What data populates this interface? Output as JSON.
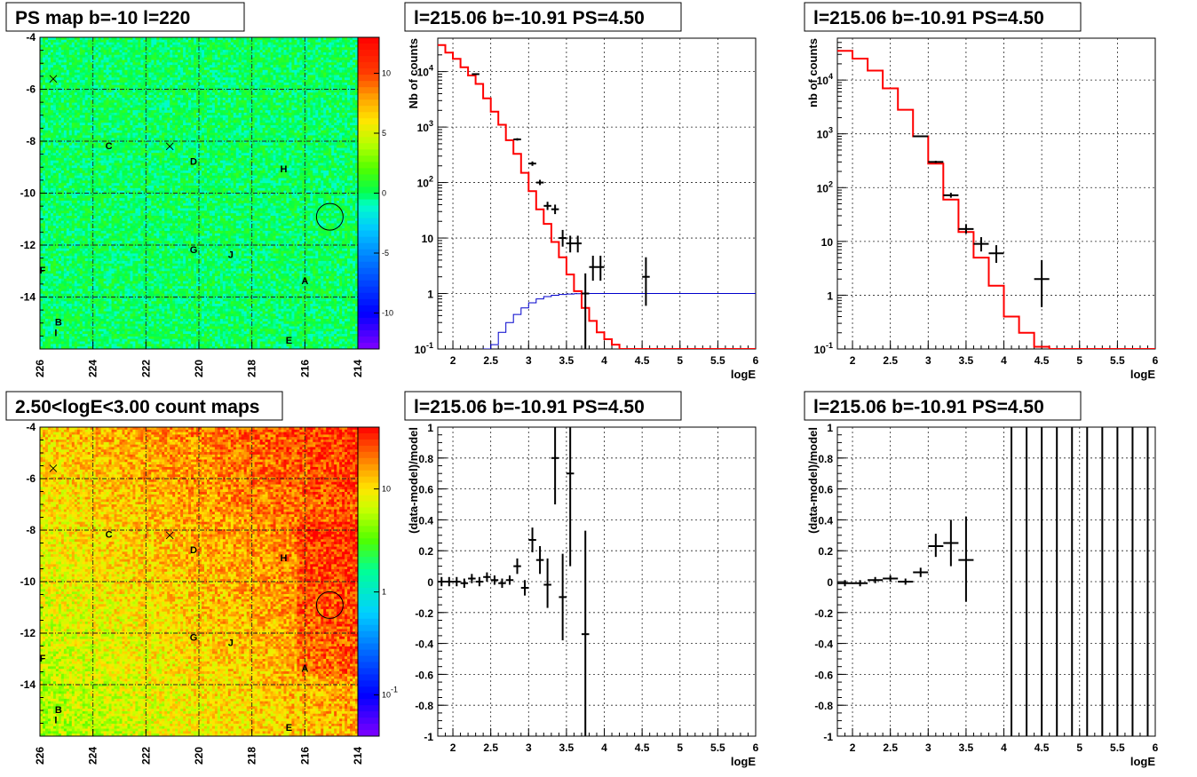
{
  "chart_data": [
    {
      "id": "ps-map",
      "type": "heatmap",
      "title": "PS map b=-10 l=220",
      "x_ticks": [
        "226",
        "224",
        "222",
        "220",
        "218",
        "216",
        "214"
      ],
      "y_ticks": [
        "-4",
        "-6",
        "-8",
        "-10",
        "-12",
        "-14"
      ],
      "xlim": [
        226,
        214
      ],
      "ylim": [
        -16,
        -4
      ],
      "colorbar_ticks": [
        "10",
        "5",
        "0",
        "-5",
        "-10"
      ],
      "colorbar_range": [
        -13,
        13
      ],
      "scale": "linear",
      "fill_level": 0,
      "source_labels": [
        {
          "text": "C",
          "l": 223.4,
          "b": -8.3
        },
        {
          "text": "D",
          "l": 220.2,
          "b": -8.9
        },
        {
          "text": "H",
          "l": 216.8,
          "b": -9.2
        },
        {
          "text": "G",
          "l": 220.2,
          "b": -12.3
        },
        {
          "text": "J",
          "l": 218.8,
          "b": -12.5
        },
        {
          "text": "F",
          "l": 225.9,
          "b": -13.1
        },
        {
          "text": "A",
          "l": 216.0,
          "b": -13.5
        },
        {
          "text": "B",
          "l": 225.3,
          "b": -15.1
        },
        {
          "text": "I",
          "l": 225.4,
          "b": -15.5
        },
        {
          "text": "E",
          "l": 216.6,
          "b": -15.8
        }
      ],
      "cross_markers": [
        {
          "l": 225.5,
          "b": -5.6
        },
        {
          "l": 221.1,
          "b": -8.2
        }
      ],
      "circle_marker": {
        "l": 215.06,
        "b": -10.91
      }
    },
    {
      "id": "count-map",
      "type": "heatmap",
      "title": "2.50<logE<3.00 count maps",
      "x_ticks": [
        "226",
        "224",
        "222",
        "220",
        "218",
        "216",
        "214"
      ],
      "y_ticks": [
        "-4",
        "-6",
        "-8",
        "-10",
        "-12",
        "-14"
      ],
      "xlim": [
        226,
        214
      ],
      "ylim": [
        -16,
        -4
      ],
      "colorbar_ticks": [
        "10",
        "1",
        "10-1"
      ],
      "colorbar_range": [
        -1.4,
        1.6
      ],
      "scale": "log",
      "source_labels": [
        {
          "text": "C",
          "l": 223.4,
          "b": -8.3
        },
        {
          "text": "D",
          "l": 220.2,
          "b": -8.9
        },
        {
          "text": "H",
          "l": 216.8,
          "b": -9.2
        },
        {
          "text": "G",
          "l": 220.2,
          "b": -12.3
        },
        {
          "text": "J",
          "l": 218.8,
          "b": -12.5
        },
        {
          "text": "F",
          "l": 225.9,
          "b": -13.1
        },
        {
          "text": "A",
          "l": 216.0,
          "b": -13.5
        },
        {
          "text": "B",
          "l": 225.3,
          "b": -15.1
        },
        {
          "text": "I",
          "l": 225.4,
          "b": -15.5
        },
        {
          "text": "E",
          "l": 216.6,
          "b": -15.8
        }
      ],
      "cross_markers": [
        {
          "l": 225.5,
          "b": -5.6
        },
        {
          "l": 221.1,
          "b": -8.2
        }
      ],
      "circle_marker": {
        "l": 215.06,
        "b": -10.91
      }
    },
    {
      "id": "spec-fine",
      "type": "line",
      "title": "l=215.06 b=-10.91 PS=4.50",
      "xlabel": "logE",
      "ylabel": "Nb of counts",
      "xlim": [
        1.8,
        6
      ],
      "ylim": [
        0.1,
        40000
      ],
      "yscale": "log",
      "x_ticks": [
        "2",
        "2.5",
        "3",
        "3.5",
        "4",
        "4.5",
        "5",
        "5.5",
        "6"
      ],
      "y_ticks": [
        "10-1",
        "1",
        "10",
        "102",
        "103",
        "104"
      ],
      "model_hist": {
        "color": "#ff0000",
        "edges": [
          1.8,
          1.9,
          2.0,
          2.1,
          2.2,
          2.3,
          2.4,
          2.5,
          2.6,
          2.7,
          2.8,
          2.9,
          3.0,
          3.1,
          3.2,
          3.3,
          3.4,
          3.5,
          3.6,
          3.7,
          3.8,
          3.9,
          4.0,
          4.1,
          4.2,
          4.3,
          4.4,
          4.5,
          6.0
        ],
        "values": [
          30000,
          22000,
          17000,
          12000,
          8500,
          6000,
          3300,
          1900,
          1100,
          580,
          330,
          150,
          70,
          33,
          18,
          8.5,
          4.5,
          2.2,
          1.1,
          0.55,
          0.32,
          0.2,
          0.15,
          0.12,
          0.1,
          0.1,
          0.1,
          0.1
        ]
      },
      "ps_hist": {
        "color": "#0000cc",
        "edges": [
          1.8,
          2.4,
          2.5,
          2.6,
          2.7,
          2.8,
          2.9,
          3.0,
          3.1,
          3.2,
          3.3,
          3.4,
          3.5,
          3.6,
          3.7,
          3.8,
          3.9,
          6.0
        ],
        "values": [
          0.05,
          0.1,
          0.12,
          0.2,
          0.3,
          0.42,
          0.55,
          0.68,
          0.8,
          0.88,
          0.93,
          0.96,
          0.98,
          0.99,
          1.0,
          1.0,
          1.0
        ]
      },
      "data_points": [
        {
          "x": 2.3,
          "y": 9000,
          "ylo": 8700,
          "yhi": 9300,
          "xerr": 0.05
        },
        {
          "x": 2.85,
          "y": 600,
          "ylo": 570,
          "yhi": 630,
          "xerr": 0.05
        },
        {
          "x": 3.05,
          "y": 220,
          "ylo": 200,
          "yhi": 240,
          "xerr": 0.05
        },
        {
          "x": 3.15,
          "y": 100,
          "ylo": 90,
          "yhi": 112,
          "xerr": 0.05
        },
        {
          "x": 3.25,
          "y": 38,
          "ylo": 32,
          "yhi": 45,
          "xerr": 0.05
        },
        {
          "x": 3.35,
          "y": 33,
          "ylo": 27,
          "yhi": 40,
          "xerr": 0.05
        },
        {
          "x": 3.45,
          "y": 10,
          "ylo": 7,
          "yhi": 14,
          "xerr": 0.05
        },
        {
          "x": 3.55,
          "y": 8,
          "ylo": 5.5,
          "yhi": 11,
          "xerr": 0.05
        },
        {
          "x": 3.65,
          "y": 8,
          "ylo": 5.5,
          "yhi": 11,
          "xerr": 0.05
        },
        {
          "x": 3.75,
          "y": 1,
          "ylo": 0.05,
          "yhi": 2.3,
          "xerr": 0.05
        },
        {
          "x": 3.85,
          "y": 3,
          "ylo": 1.7,
          "yhi": 4.8,
          "xerr": 0.05
        },
        {
          "x": 3.95,
          "y": 3,
          "ylo": 1.7,
          "yhi": 4.8,
          "xerr": 0.05
        },
        {
          "x": 4.55,
          "y": 2,
          "ylo": 0.6,
          "yhi": 4.5,
          "xerr": 0.05
        }
      ]
    },
    {
      "id": "spec-coarse",
      "type": "line",
      "title": "l=215.06 b=-10.91 PS=4.50",
      "xlabel": "logE",
      "ylabel": "nb of counts",
      "xlim": [
        1.8,
        6
      ],
      "ylim": [
        0.1,
        60000
      ],
      "yscale": "log",
      "x_ticks": [
        "2",
        "2.5",
        "3",
        "3.5",
        "4",
        "4.5",
        "5",
        "5.5",
        "6"
      ],
      "y_ticks": [
        "10-1",
        "1",
        "10",
        "102",
        "103",
        "104"
      ],
      "model_hist": {
        "color": "#ff0000",
        "edges": [
          1.8,
          2.0,
          2.2,
          2.4,
          2.6,
          2.8,
          3.0,
          3.2,
          3.4,
          3.6,
          3.8,
          4.0,
          4.2,
          4.4,
          4.6,
          6.0
        ],
        "values": [
          35000,
          25000,
          15000,
          7000,
          2800,
          900,
          280,
          60,
          15,
          5,
          1.5,
          0.4,
          0.2,
          0.11,
          0.1
        ]
      },
      "data_points": [
        {
          "x": 2.9,
          "y": 900,
          "ylo": 870,
          "yhi": 930,
          "xerr": 0.1
        },
        {
          "x": 3.1,
          "y": 300,
          "ylo": 285,
          "yhi": 315,
          "xerr": 0.1
        },
        {
          "x": 3.3,
          "y": 72,
          "ylo": 65,
          "yhi": 80,
          "xerr": 0.1
        },
        {
          "x": 3.5,
          "y": 17,
          "ylo": 14,
          "yhi": 21,
          "xerr": 0.1
        },
        {
          "x": 3.7,
          "y": 9,
          "ylo": 6.5,
          "yhi": 12,
          "xerr": 0.1
        },
        {
          "x": 3.9,
          "y": 6,
          "ylo": 4,
          "yhi": 8.5,
          "xerr": 0.1
        },
        {
          "x": 4.5,
          "y": 2,
          "ylo": 0.6,
          "yhi": 4.5,
          "xerr": 0.1
        }
      ]
    },
    {
      "id": "resid-fine",
      "type": "scatter",
      "title": "l=215.06 b=-10.91 PS=4.50",
      "xlabel": "logE",
      "ylabel": "(data-model)/model",
      "xlim": [
        1.8,
        6
      ],
      "ylim": [
        -1,
        1
      ],
      "x_ticks": [
        "2",
        "2.5",
        "3",
        "3.5",
        "4",
        "4.5",
        "5",
        "5.5",
        "6"
      ],
      "y_ticks": [
        "-1",
        "-0.8",
        "-0.6",
        "-0.4",
        "-0.2",
        "0",
        "0.2",
        "0.4",
        "0.6",
        "0.8",
        "1"
      ],
      "data_points": [
        {
          "x": 1.85,
          "y": 0.0,
          "ylo": -0.03,
          "yhi": 0.03,
          "xerr": 0.05
        },
        {
          "x": 1.95,
          "y": 0.0,
          "ylo": -0.03,
          "yhi": 0.03,
          "xerr": 0.05
        },
        {
          "x": 2.05,
          "y": 0.0,
          "ylo": -0.03,
          "yhi": 0.03,
          "xerr": 0.05
        },
        {
          "x": 2.15,
          "y": -0.01,
          "ylo": -0.04,
          "yhi": 0.02,
          "xerr": 0.05
        },
        {
          "x": 2.25,
          "y": 0.02,
          "ylo": -0.01,
          "yhi": 0.05,
          "xerr": 0.05
        },
        {
          "x": 2.35,
          "y": 0.0,
          "ylo": -0.03,
          "yhi": 0.03,
          "xerr": 0.05
        },
        {
          "x": 2.45,
          "y": 0.03,
          "ylo": 0.0,
          "yhi": 0.06,
          "xerr": 0.05
        },
        {
          "x": 2.55,
          "y": 0.01,
          "ylo": -0.02,
          "yhi": 0.04,
          "xerr": 0.05
        },
        {
          "x": 2.65,
          "y": -0.01,
          "ylo": -0.04,
          "yhi": 0.02,
          "xerr": 0.05
        },
        {
          "x": 2.75,
          "y": 0.01,
          "ylo": -0.02,
          "yhi": 0.04,
          "xerr": 0.05
        },
        {
          "x": 2.85,
          "y": 0.1,
          "ylo": 0.05,
          "yhi": 0.15,
          "xerr": 0.05
        },
        {
          "x": 2.95,
          "y": -0.04,
          "ylo": -0.09,
          "yhi": 0.01,
          "xerr": 0.05
        },
        {
          "x": 3.05,
          "y": 0.27,
          "ylo": 0.19,
          "yhi": 0.35,
          "xerr": 0.05
        },
        {
          "x": 3.15,
          "y": 0.14,
          "ylo": 0.05,
          "yhi": 0.23,
          "xerr": 0.05
        },
        {
          "x": 3.25,
          "y": -0.02,
          "ylo": -0.17,
          "yhi": 0.15,
          "xerr": 0.05
        },
        {
          "x": 3.35,
          "y": 0.8,
          "ylo": 0.5,
          "yhi": 1.0,
          "xerr": 0.05
        },
        {
          "x": 3.45,
          "y": -0.1,
          "ylo": -0.38,
          "yhi": 0.18,
          "xerr": 0.05
        },
        {
          "x": 3.55,
          "y": 0.7,
          "ylo": 0.1,
          "yhi": 1.0,
          "xerr": 0.05
        },
        {
          "x": 3.75,
          "y": -0.34,
          "ylo": -1.0,
          "yhi": 0.33,
          "xerr": 0.05
        }
      ]
    },
    {
      "id": "resid-coarse",
      "type": "scatter",
      "title": "l=215.06 b=-10.91 PS=4.50",
      "xlabel": "logE",
      "ylabel": "(data-model)/model",
      "xlim": [
        1.8,
        6
      ],
      "ylim": [
        -1,
        1
      ],
      "x_ticks": [
        "2",
        "2.5",
        "3",
        "3.5",
        "4",
        "4.5",
        "5",
        "5.5",
        "6"
      ],
      "y_ticks": [
        "-1",
        "-0.8",
        "-0.6",
        "-0.4",
        "-0.2",
        "0",
        "0.2",
        "0.4",
        "0.6",
        "0.8",
        "1"
      ],
      "data_points": [
        {
          "x": 1.9,
          "y": -0.01,
          "ylo": -0.03,
          "yhi": 0.01,
          "xerr": 0.1
        },
        {
          "x": 2.1,
          "y": -0.01,
          "ylo": -0.03,
          "yhi": 0.01,
          "xerr": 0.1
        },
        {
          "x": 2.3,
          "y": 0.01,
          "ylo": -0.01,
          "yhi": 0.03,
          "xerr": 0.1
        },
        {
          "x": 2.5,
          "y": 0.02,
          "ylo": 0.0,
          "yhi": 0.04,
          "xerr": 0.1
        },
        {
          "x": 2.7,
          "y": 0.0,
          "ylo": -0.02,
          "yhi": 0.02,
          "xerr": 0.1
        },
        {
          "x": 2.9,
          "y": 0.06,
          "ylo": 0.03,
          "yhi": 0.09,
          "xerr": 0.1
        },
        {
          "x": 3.1,
          "y": 0.23,
          "ylo": 0.16,
          "yhi": 0.31,
          "xerr": 0.1
        },
        {
          "x": 3.3,
          "y": 0.25,
          "ylo": 0.1,
          "yhi": 0.4,
          "xerr": 0.1
        },
        {
          "x": 3.5,
          "y": 0.14,
          "ylo": -0.13,
          "yhi": 0.42,
          "xerr": 0.1
        },
        {
          "x": 4.1,
          "y": 0,
          "ylo": -1,
          "yhi": 1,
          "xerr": 0
        },
        {
          "x": 4.3,
          "y": 0,
          "ylo": -1,
          "yhi": 1,
          "xerr": 0
        },
        {
          "x": 4.5,
          "y": 0,
          "ylo": -1,
          "yhi": 1,
          "xerr": 0
        },
        {
          "x": 4.7,
          "y": 0,
          "ylo": -1,
          "yhi": 1,
          "xerr": 0
        },
        {
          "x": 4.9,
          "y": 0,
          "ylo": -1,
          "yhi": 1,
          "xerr": 0
        },
        {
          "x": 5.1,
          "y": 0,
          "ylo": -1,
          "yhi": 1,
          "xerr": 0
        },
        {
          "x": 5.3,
          "y": 0,
          "ylo": -1,
          "yhi": 1,
          "xerr": 0
        },
        {
          "x": 5.5,
          "y": 0,
          "ylo": -1,
          "yhi": 1,
          "xerr": 0
        },
        {
          "x": 5.7,
          "y": 0,
          "ylo": -1,
          "yhi": 1,
          "xerr": 0
        },
        {
          "x": 5.9,
          "y": 0,
          "ylo": -1,
          "yhi": 1,
          "xerr": 0
        }
      ]
    }
  ]
}
